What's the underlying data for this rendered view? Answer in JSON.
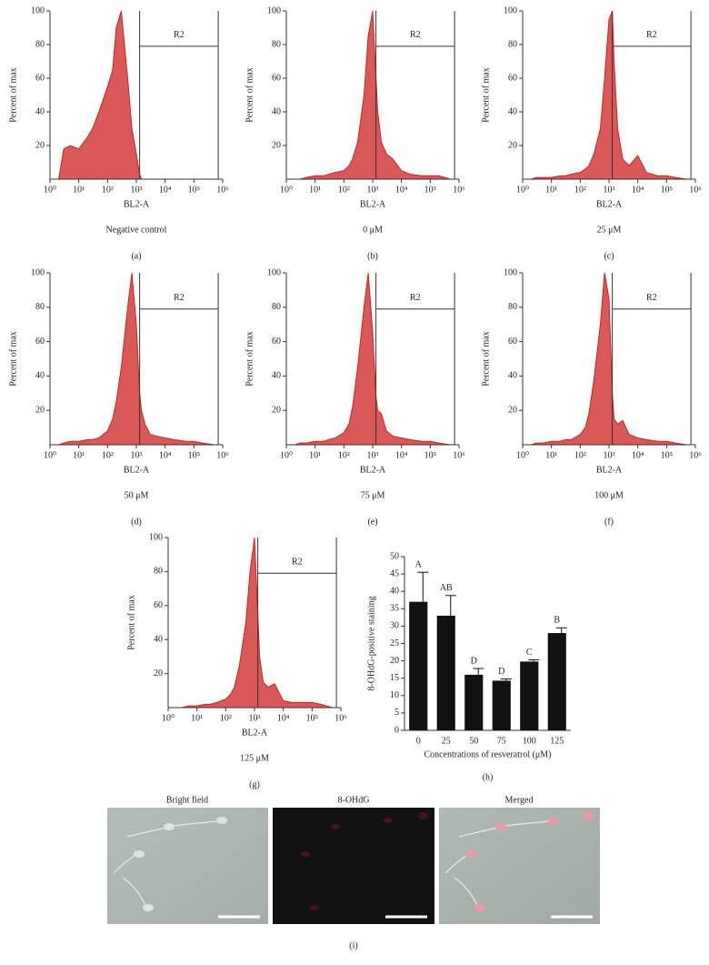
{
  "chart_data": [
    {
      "type": "area",
      "panel": "(a)",
      "caption": "Negative control",
      "x_label": "BL2-A",
      "y_label": "Percent of max",
      "log_x": true,
      "color": "#cc2222",
      "x": [
        1,
        2,
        3,
        5,
        10,
        20,
        30,
        50,
        100,
        150,
        200,
        300,
        500,
        700,
        1000,
        1300,
        1500,
        2000,
        3000,
        5000,
        10000,
        20000,
        50000,
        100000,
        200000,
        500000
      ],
      "values": [
        0,
        0,
        18,
        20,
        18,
        25,
        30,
        40,
        55,
        65,
        90,
        100,
        60,
        30,
        15,
        3,
        0,
        0,
        0,
        0,
        0,
        0,
        0,
        0,
        0,
        0
      ],
      "xlim": [
        1,
        1000000
      ],
      "xticks": [
        {
          "value": 1,
          "label": "10⁰"
        },
        {
          "value": 10,
          "label": "10¹"
        },
        {
          "value": 100,
          "label": "10²"
        },
        {
          "value": 1000,
          "label": "10³"
        },
        {
          "value": 10000,
          "label": "10⁴"
        },
        {
          "value": 100000,
          "label": "10⁵"
        },
        {
          "value": 1000000,
          "label": "10⁶"
        }
      ],
      "ylim": [
        0,
        100
      ],
      "yticks": [
        20,
        40,
        60,
        80,
        100
      ],
      "gate": {
        "label": "R2",
        "x": [
          1300,
          700000
        ],
        "y": 79
      }
    },
    {
      "type": "area",
      "panel": "(b)",
      "caption": "0 μM",
      "x_label": "BL2-A",
      "y_label": "Percent of max",
      "log_x": true,
      "color": "#cc2222",
      "x": [
        1,
        2,
        3,
        5,
        10,
        20,
        30,
        50,
        100,
        150,
        200,
        300,
        500,
        700,
        1000,
        1300,
        1500,
        2000,
        3000,
        5000,
        10000,
        20000,
        50000,
        100000,
        200000,
        500000
      ],
      "values": [
        0,
        0,
        0,
        1,
        2,
        2,
        3,
        4,
        5,
        8,
        12,
        22,
        50,
        85,
        100,
        60,
        40,
        22,
        15,
        12,
        5,
        3,
        2,
        2,
        2,
        0
      ],
      "xlim": [
        1,
        1000000
      ],
      "xticks": [
        {
          "value": 1,
          "label": "10⁰"
        },
        {
          "value": 10,
          "label": "10¹"
        },
        {
          "value": 100,
          "label": "10²"
        },
        {
          "value": 1000,
          "label": "10³"
        },
        {
          "value": 10000,
          "label": "10⁴"
        },
        {
          "value": 100000,
          "label": "10⁵"
        },
        {
          "value": 1000000,
          "label": "10⁶"
        }
      ],
      "ylim": [
        0,
        100
      ],
      "yticks": [
        20,
        40,
        60,
        80,
        100
      ],
      "gate": {
        "label": "R2",
        "x": [
          1300,
          700000
        ],
        "y": 79
      }
    },
    {
      "type": "area",
      "panel": "(c)",
      "caption": "25 μM",
      "x_label": "BL2-A",
      "y_label": "Percent of max",
      "log_x": true,
      "color": "#cc2222",
      "x": [
        1,
        2,
        3,
        5,
        10,
        20,
        30,
        50,
        100,
        150,
        200,
        300,
        500,
        700,
        1000,
        1300,
        1500,
        2000,
        3000,
        5000,
        10000,
        20000,
        50000,
        100000,
        200000,
        500000
      ],
      "values": [
        0,
        0,
        1,
        1,
        1,
        2,
        2,
        3,
        4,
        6,
        8,
        15,
        30,
        60,
        95,
        100,
        70,
        30,
        12,
        8,
        14,
        4,
        2,
        2,
        1,
        0
      ],
      "xlim": [
        1,
        1000000
      ],
      "xticks": [
        {
          "value": 1,
          "label": "10⁰"
        },
        {
          "value": 10,
          "label": "10¹"
        },
        {
          "value": 100,
          "label": "10²"
        },
        {
          "value": 1000,
          "label": "10³"
        },
        {
          "value": 10000,
          "label": "10⁴"
        },
        {
          "value": 100000,
          "label": "10⁵"
        },
        {
          "value": 1000000,
          "label": "10⁶"
        }
      ],
      "ylim": [
        0,
        100
      ],
      "yticks": [
        20,
        40,
        60,
        80,
        100
      ],
      "gate": {
        "label": "R2",
        "x": [
          1300,
          700000
        ],
        "y": 79
      }
    },
    {
      "type": "area",
      "panel": "(d)",
      "caption": "50 μM",
      "x_label": "BL2-A",
      "y_label": "Percent of max",
      "log_x": true,
      "color": "#cc2222",
      "x": [
        1,
        2,
        3,
        5,
        10,
        20,
        30,
        50,
        100,
        150,
        200,
        300,
        500,
        700,
        1000,
        1300,
        1500,
        2000,
        3000,
        5000,
        10000,
        20000,
        50000,
        100000,
        200000,
        500000
      ],
      "values": [
        0,
        0,
        1,
        2,
        2,
        3,
        3,
        4,
        8,
        15,
        25,
        45,
        80,
        100,
        70,
        30,
        20,
        12,
        6,
        5,
        4,
        3,
        2,
        2,
        1,
        0
      ],
      "xlim": [
        1,
        1000000
      ],
      "xticks": [
        {
          "value": 1,
          "label": "10⁰"
        },
        {
          "value": 10,
          "label": "10¹"
        },
        {
          "value": 100,
          "label": "10²"
        },
        {
          "value": 1000,
          "label": "10³"
        },
        {
          "value": 10000,
          "label": "10⁴"
        },
        {
          "value": 100000,
          "label": "10⁵"
        },
        {
          "value": 1000000,
          "label": "10⁶"
        }
      ],
      "ylim": [
        0,
        100
      ],
      "yticks": [
        20,
        40,
        60,
        80,
        100
      ],
      "gate": {
        "label": "R2",
        "x": [
          1300,
          700000
        ],
        "y": 79
      }
    },
    {
      "type": "area",
      "panel": "(e)",
      "caption": "75 μM",
      "x_label": "BL2-A",
      "y_label": "Percent of max",
      "log_x": true,
      "color": "#cc2222",
      "x": [
        1,
        2,
        3,
        5,
        10,
        20,
        30,
        50,
        100,
        150,
        200,
        300,
        500,
        700,
        1000,
        1300,
        1500,
        2000,
        3000,
        5000,
        10000,
        20000,
        50000,
        100000,
        200000,
        500000
      ],
      "values": [
        0,
        0,
        1,
        1,
        2,
        2,
        3,
        4,
        7,
        12,
        22,
        45,
        80,
        100,
        65,
        28,
        20,
        18,
        8,
        5,
        4,
        3,
        2,
        2,
        1,
        0
      ],
      "xlim": [
        1,
        1000000
      ],
      "xticks": [
        {
          "value": 1,
          "label": "10⁰"
        },
        {
          "value": 10,
          "label": "10¹"
        },
        {
          "value": 100,
          "label": "10²"
        },
        {
          "value": 1000,
          "label": "10³"
        },
        {
          "value": 10000,
          "label": "10⁴"
        },
        {
          "value": 100000,
          "label": "10⁵"
        },
        {
          "value": 1000000,
          "label": "10⁶"
        }
      ],
      "ylim": [
        0,
        100
      ],
      "yticks": [
        20,
        40,
        60,
        80,
        100
      ],
      "gate": {
        "label": "R2",
        "x": [
          1300,
          700000
        ],
        "y": 79
      }
    },
    {
      "type": "area",
      "panel": "(f)",
      "caption": "100 μM",
      "x_label": "BL2-A",
      "y_label": "Percent of max",
      "log_x": true,
      "color": "#cc2222",
      "x": [
        1,
        2,
        3,
        5,
        10,
        20,
        30,
        50,
        100,
        150,
        200,
        300,
        500,
        700,
        1000,
        1300,
        1500,
        2000,
        3000,
        5000,
        10000,
        20000,
        50000,
        100000,
        200000,
        500000
      ],
      "values": [
        0,
        0,
        1,
        1,
        2,
        2,
        3,
        3,
        6,
        10,
        18,
        38,
        70,
        100,
        85,
        30,
        15,
        12,
        14,
        6,
        4,
        3,
        2,
        2,
        1,
        0
      ],
      "xlim": [
        1,
        1000000
      ],
      "xticks": [
        {
          "value": 1,
          "label": "10⁰"
        },
        {
          "value": 10,
          "label": "10¹"
        },
        {
          "value": 100,
          "label": "10²"
        },
        {
          "value": 1000,
          "label": "10³"
        },
        {
          "value": 10000,
          "label": "10⁴"
        },
        {
          "value": 100000,
          "label": "10⁵"
        },
        {
          "value": 1000000,
          "label": "10⁶"
        }
      ],
      "ylim": [
        0,
        100
      ],
      "yticks": [
        20,
        40,
        60,
        80,
        100
      ],
      "gate": {
        "label": "R2",
        "x": [
          1300,
          700000
        ],
        "y": 79
      }
    },
    {
      "type": "area",
      "panel": "(g)",
      "caption": "125 μM",
      "x_label": "BL2-A",
      "y_label": "Percent of max",
      "log_x": true,
      "color": "#cc2222",
      "x": [
        1,
        2,
        3,
        5,
        10,
        20,
        30,
        50,
        100,
        150,
        200,
        300,
        500,
        700,
        1000,
        1300,
        1500,
        2000,
        3000,
        5000,
        10000,
        20000,
        50000,
        100000,
        200000,
        500000
      ],
      "values": [
        0,
        0,
        0,
        1,
        1,
        2,
        2,
        3,
        5,
        8,
        12,
        25,
        50,
        80,
        100,
        55,
        30,
        15,
        12,
        14,
        4,
        3,
        3,
        3,
        2,
        0
      ],
      "xlim": [
        1,
        1000000
      ],
      "xticks": [
        {
          "value": 1,
          "label": "10⁰"
        },
        {
          "value": 10,
          "label": "10¹"
        },
        {
          "value": 100,
          "label": "10²"
        },
        {
          "value": 1000,
          "label": "10³"
        },
        {
          "value": 10000,
          "label": "10⁴"
        },
        {
          "value": 100000,
          "label": "10⁵"
        },
        {
          "value": 1000000,
          "label": "10⁶"
        }
      ],
      "ylim": [
        0,
        100
      ],
      "yticks": [
        20,
        40,
        60,
        80,
        100
      ],
      "gate": {
        "label": "R2",
        "x": [
          1300,
          700000
        ],
        "y": 79
      }
    },
    {
      "type": "bar",
      "panel": "(h)",
      "x_label": "Concentrations of resveratrol (μM)",
      "y_label": "8-OHdG-positive staining",
      "color": "#111111",
      "categories": [
        "0",
        "25",
        "50",
        "75",
        "100",
        "125"
      ],
      "values": [
        37,
        33,
        16,
        14.3,
        19.8,
        28
      ],
      "errors": [
        8.5,
        5.8,
        1.8,
        0.5,
        0.5,
        1.5
      ],
      "labels": [
        "A",
        "AB",
        "D",
        "D",
        "C",
        "B"
      ],
      "ylim": [
        0,
        50
      ],
      "yticks": [
        0,
        5,
        10,
        15,
        20,
        25,
        30,
        35,
        40,
        45,
        50
      ]
    }
  ],
  "figure_i": {
    "panel": "(i)",
    "images": [
      {
        "label": "Bright field"
      },
      {
        "label": "8-OHdG"
      },
      {
        "label": "Merged"
      }
    ]
  }
}
